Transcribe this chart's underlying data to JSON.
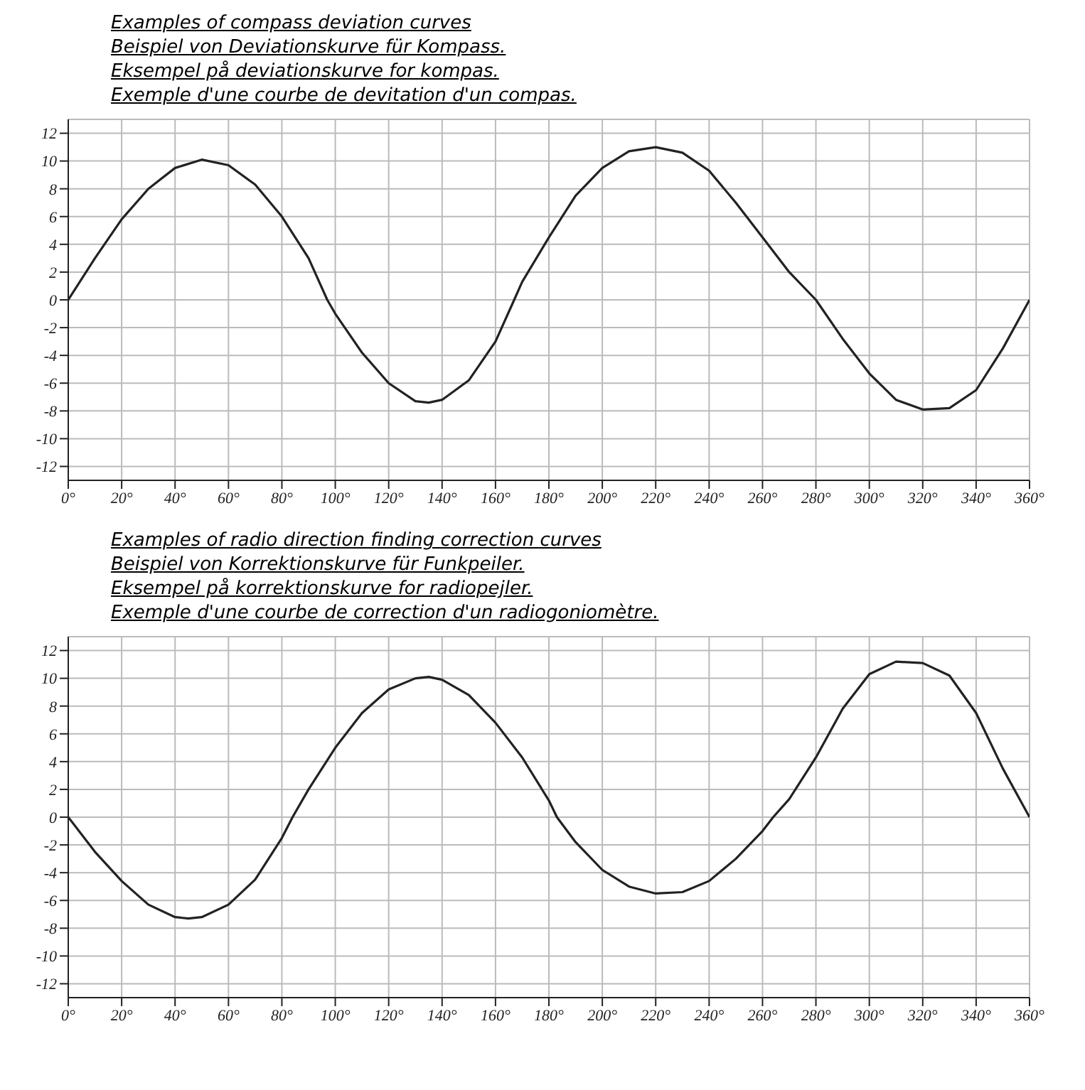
{
  "chart_data": [
    {
      "type": "line",
      "title": "Examples of compass deviation curves",
      "subtitle": "Beispiel von Deviationskurve für Kompass.\nEksempel på deviationskurve for kompas.\nExemple d'une courbe de devitation d'un compas.",
      "x": [
        0,
        10,
        20,
        30,
        40,
        50,
        60,
        70,
        80,
        90,
        97,
        100,
        110,
        120,
        130,
        135,
        140,
        150,
        160,
        167,
        170,
        180,
        190,
        200,
        210,
        220,
        230,
        240,
        250,
        260,
        270,
        280,
        290,
        300,
        310,
        320,
        330,
        340,
        350,
        360
      ],
      "series": [
        {
          "color": "#222222",
          "values": [
            0,
            3,
            5.8,
            8,
            9.5,
            10.1,
            9.7,
            8.3,
            6,
            3,
            0,
            -1,
            -3.8,
            -6,
            -7.3,
            -7.4,
            -7.2,
            -5.8,
            -3,
            0,
            1.3,
            4.5,
            7.5,
            9.5,
            10.7,
            11,
            10.6,
            9.3,
            7,
            4.5,
            2,
            0,
            -2.8,
            -5.3,
            -7.2,
            -7.9,
            -7.8,
            -6.5,
            -3.5,
            0
          ]
        }
      ],
      "xlim": [
        0,
        360
      ],
      "xticks": [
        {
          "value": 0,
          "label": "0°"
        },
        {
          "value": 20,
          "label": "20°"
        },
        {
          "value": 40,
          "label": "40°"
        },
        {
          "value": 60,
          "label": "60°"
        },
        {
          "value": 80,
          "label": "80°"
        },
        {
          "value": 100,
          "label": "100°"
        },
        {
          "value": 120,
          "label": "120°"
        },
        {
          "value": 140,
          "label": "140°"
        },
        {
          "value": 160,
          "label": "160°"
        },
        {
          "value": 180,
          "label": "180°"
        },
        {
          "value": 200,
          "label": "200°"
        },
        {
          "value": 220,
          "label": "220°"
        },
        {
          "value": 240,
          "label": "240°"
        },
        {
          "value": 260,
          "label": "260°"
        },
        {
          "value": 280,
          "label": "280°"
        },
        {
          "value": 300,
          "label": "300°"
        },
        {
          "value": 320,
          "label": "320°"
        },
        {
          "value": 340,
          "label": "340°"
        },
        {
          "value": 360,
          "label": "360°"
        }
      ],
      "ylim": [
        -13,
        13
      ],
      "yticks": [
        -12,
        -10,
        -8,
        -6,
        -4,
        -2,
        0,
        2,
        4,
        6,
        8,
        10,
        12
      ],
      "grid": true,
      "marker": "none",
      "line_style": "solid"
    },
    {
      "type": "line",
      "title": "Examples of radio direction finding correction curves",
      "subtitle": "Beispiel von Korrektionskurve für Funkpeiler.\nEksempel på korrektionskurve for radiopejler.\nExemple d'une courbe de correction d'un radiogoniomètre.",
      "x": [
        0,
        10,
        20,
        30,
        40,
        45,
        50,
        60,
        70,
        80,
        84,
        90,
        100,
        110,
        120,
        130,
        135,
        140,
        150,
        160,
        170,
        180,
        183,
        190,
        200,
        210,
        220,
        230,
        240,
        250,
        260,
        264,
        270,
        280,
        290,
        300,
        310,
        320,
        330,
        340,
        350,
        360
      ],
      "series": [
        {
          "color": "#222222",
          "values": [
            0,
            -2.5,
            -4.6,
            -6.3,
            -7.2,
            -7.3,
            -7.2,
            -6.3,
            -4.5,
            -1.5,
            0,
            2,
            5,
            7.5,
            9.2,
            10,
            10.1,
            9.9,
            8.8,
            6.8,
            4.3,
            1.2,
            0,
            -1.8,
            -3.8,
            -5,
            -5.5,
            -5.4,
            -4.6,
            -3,
            -1,
            0,
            1.3,
            4.3,
            7.8,
            10.3,
            11.2,
            11.1,
            10.2,
            7.5,
            3.5,
            0
          ]
        }
      ],
      "xlim": [
        0,
        360
      ],
      "xticks": [
        {
          "value": 0,
          "label": "0°"
        },
        {
          "value": 20,
          "label": "20°"
        },
        {
          "value": 40,
          "label": "40°"
        },
        {
          "value": 60,
          "label": "60°"
        },
        {
          "value": 80,
          "label": "80°"
        },
        {
          "value": 100,
          "label": "100°"
        },
        {
          "value": 120,
          "label": "120°"
        },
        {
          "value": 140,
          "label": "140°"
        },
        {
          "value": 160,
          "label": "160°"
        },
        {
          "value": 180,
          "label": "180°"
        },
        {
          "value": 200,
          "label": "200°"
        },
        {
          "value": 220,
          "label": "220°"
        },
        {
          "value": 240,
          "label": "240°"
        },
        {
          "value": 260,
          "label": "260°"
        },
        {
          "value": 280,
          "label": "280°"
        },
        {
          "value": 300,
          "label": "300°"
        },
        {
          "value": 320,
          "label": "320°"
        },
        {
          "value": 340,
          "label": "340°"
        },
        {
          "value": 360,
          "label": "360°"
        }
      ],
      "ylim": [
        -13,
        13
      ],
      "yticks": [
        -12,
        -10,
        -8,
        -6,
        -4,
        -2,
        0,
        2,
        4,
        6,
        8,
        10,
        12
      ],
      "grid": true,
      "marker": "none",
      "line_style": "solid"
    }
  ]
}
